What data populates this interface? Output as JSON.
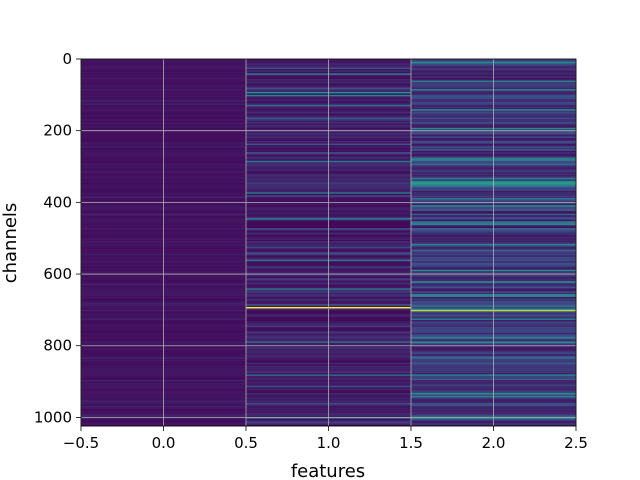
{
  "chart_data": {
    "type": "heatmap",
    "title": "",
    "xlabel": "features",
    "ylabel": "channels",
    "xlim": [
      -0.5,
      2.5
    ],
    "ylim": [
      1024,
      0
    ],
    "y_inverted": true,
    "x_ticks": [
      "−0.5",
      "0.0",
      "0.5",
      "1.0",
      "1.5",
      "2.0",
      "2.5"
    ],
    "x_tick_values": [
      -0.5,
      0.0,
      0.5,
      1.0,
      1.5,
      2.0,
      2.5
    ],
    "y_ticks": [
      "0",
      "200",
      "400",
      "600",
      "800",
      "1000"
    ],
    "y_tick_values": [
      0,
      200,
      400,
      600,
      800,
      1000
    ],
    "grid": true,
    "colormap": "viridis",
    "n_channels": 1024,
    "n_features": 3,
    "columns": [
      {
        "feature": 0,
        "base": 0.05,
        "noise": 0.04,
        "highlights": []
      },
      {
        "feature": 1,
        "base": 0.08,
        "noise": 0.12,
        "highlights": [
          {
            "channel": 40,
            "value": 0.45
          },
          {
            "channel": 95,
            "value": 0.5
          },
          {
            "channel": 100,
            "value": 0.45
          },
          {
            "channel": 130,
            "value": 0.35
          },
          {
            "channel": 285,
            "value": 0.4
          },
          {
            "channel": 375,
            "value": 0.4
          },
          {
            "channel": 445,
            "value": 0.45
          },
          {
            "channel": 560,
            "value": 0.4
          },
          {
            "channel": 640,
            "value": 0.4
          },
          {
            "channel": 693,
            "value": 1.0
          },
          {
            "channel": 790,
            "value": 0.35
          },
          {
            "channel": 880,
            "value": 0.35
          },
          {
            "channel": 1000,
            "value": 0.35
          }
        ]
      },
      {
        "feature": 2,
        "base": 0.15,
        "noise": 0.2,
        "highlights": [
          {
            "channel": 10,
            "value": 0.5
          },
          {
            "channel": 60,
            "value": 0.45
          },
          {
            "channel": 140,
            "value": 0.45
          },
          {
            "channel": 280,
            "value": 0.45
          },
          {
            "channel": 345,
            "value": 0.55
          },
          {
            "channel": 350,
            "value": 0.5
          },
          {
            "channel": 410,
            "value": 0.5
          },
          {
            "channel": 460,
            "value": 0.45
          },
          {
            "channel": 590,
            "value": 0.5
          },
          {
            "channel": 620,
            "value": 0.5
          },
          {
            "channel": 660,
            "value": 0.45
          },
          {
            "channel": 700,
            "value": 0.9
          },
          {
            "channel": 790,
            "value": 0.5
          },
          {
            "channel": 880,
            "value": 0.45
          },
          {
            "channel": 940,
            "value": 0.45
          },
          {
            "channel": 1000,
            "value": 0.45
          }
        ]
      }
    ]
  }
}
